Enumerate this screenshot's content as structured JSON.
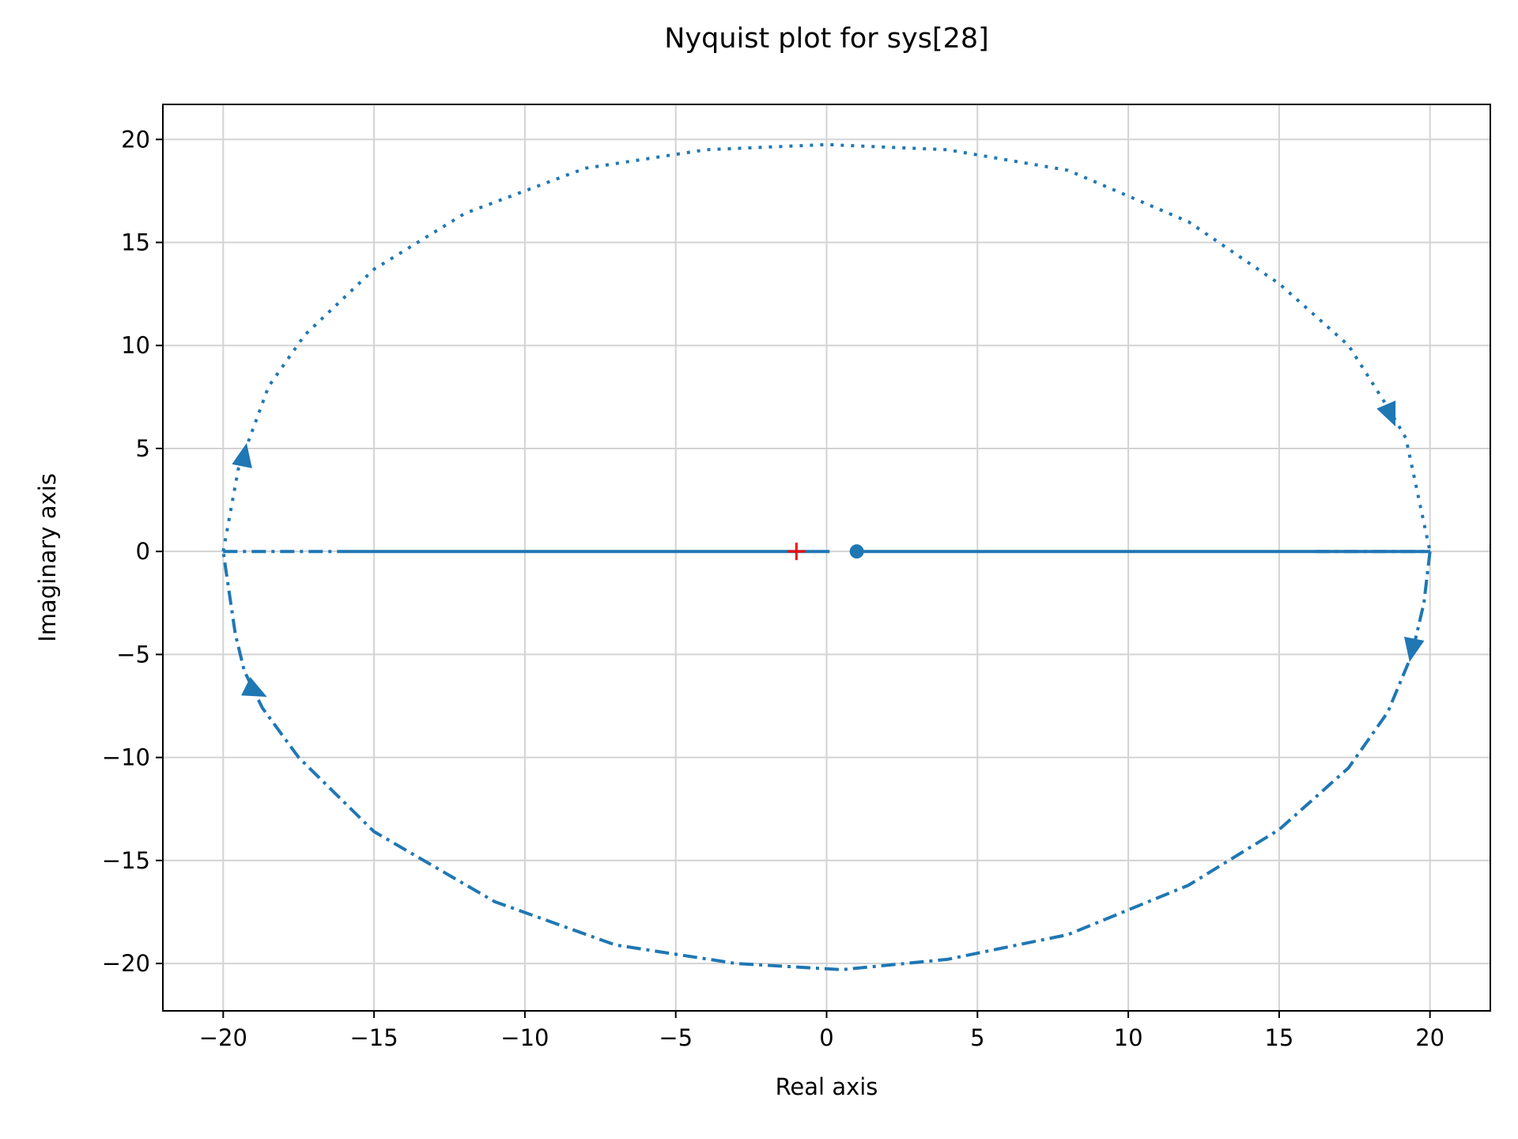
{
  "chart_data": {
    "type": "line",
    "title": "Nyquist plot for sys[28]",
    "xlabel": "Real axis",
    "ylabel": "Imaginary axis",
    "xlim": [
      -22,
      22
    ],
    "ylim": [
      -22.3,
      21.7
    ],
    "xticks": [
      -20,
      -15,
      -10,
      -5,
      0,
      5,
      10,
      15,
      20
    ],
    "yticks": [
      -20,
      -15,
      -10,
      -5,
      0,
      5,
      10,
      15,
      20
    ],
    "grid": true,
    "colors": {
      "curve": "#1f77b4",
      "critical_point": "#ff0000",
      "grid": "#d3d3d3"
    },
    "series": [
      {
        "style": "solid",
        "x": [
          1.0,
          4.0,
          8.0,
          12.0,
          16.0,
          20.0
        ],
        "y": [
          0,
          0,
          0,
          0,
          0,
          0
        ]
      },
      {
        "style": "dashdot",
        "x": [
          16.2,
          20.0
        ],
        "y": [
          0,
          0
        ]
      },
      {
        "style": "dashdot",
        "x": [
          20.0,
          19.8,
          19.4,
          18.6,
          17.3,
          15.0,
          12.0,
          8.0,
          4.0,
          0.5,
          -3.0,
          -7.0,
          -11.0,
          -15.0,
          -17.5,
          -18.7,
          -19.3,
          -19.6,
          -20.0
        ],
        "y": [
          0,
          -2.5,
          -5.0,
          -7.8,
          -10.5,
          -13.5,
          -16.2,
          -18.6,
          -19.8,
          -20.3,
          -20.0,
          -19.1,
          -17.0,
          -13.6,
          -10.0,
          -7.6,
          -5.8,
          -4.0,
          0
        ]
      },
      {
        "style": "dashdot",
        "x": [
          -20.0,
          -16.0
        ],
        "y": [
          0,
          0
        ]
      },
      {
        "style": "solid",
        "x": [
          -16.0,
          -12.0,
          -8.0,
          -4.0,
          -1.0,
          0.1
        ],
        "y": [
          0,
          0,
          0,
          0,
          0,
          0
        ]
      },
      {
        "style": "dotted",
        "x": [
          -20.0,
          -19.5,
          -18.5,
          -17.3,
          -15.0,
          -12.0,
          -8.0,
          -4.0,
          0,
          4.0,
          8.0,
          12.0,
          15.0,
          17.3,
          18.6,
          19.2,
          20.0
        ],
        "y": [
          0,
          4.0,
          8.0,
          10.5,
          13.7,
          16.4,
          18.6,
          19.5,
          19.75,
          19.5,
          18.5,
          16.0,
          13.0,
          10.0,
          7.0,
          5.5,
          0
        ]
      }
    ],
    "arrows": [
      {
        "x": 19.4,
        "y": -4.8,
        "dx": -0.2,
        "dy": -1.0
      },
      {
        "x": -18.9,
        "y": -6.8,
        "dx": 0.4,
        "dy": -0.2
      },
      {
        "x": -19.3,
        "y": 4.7,
        "dx": 0.2,
        "dy": 1.0
      },
      {
        "x": 18.7,
        "y": 6.6,
        "dx": 0.3,
        "dy": -0.7
      }
    ],
    "markers": [
      {
        "kind": "circle",
        "x": 1.0,
        "y": 0
      },
      {
        "kind": "plus",
        "x": -1.0,
        "y": 0
      }
    ]
  }
}
